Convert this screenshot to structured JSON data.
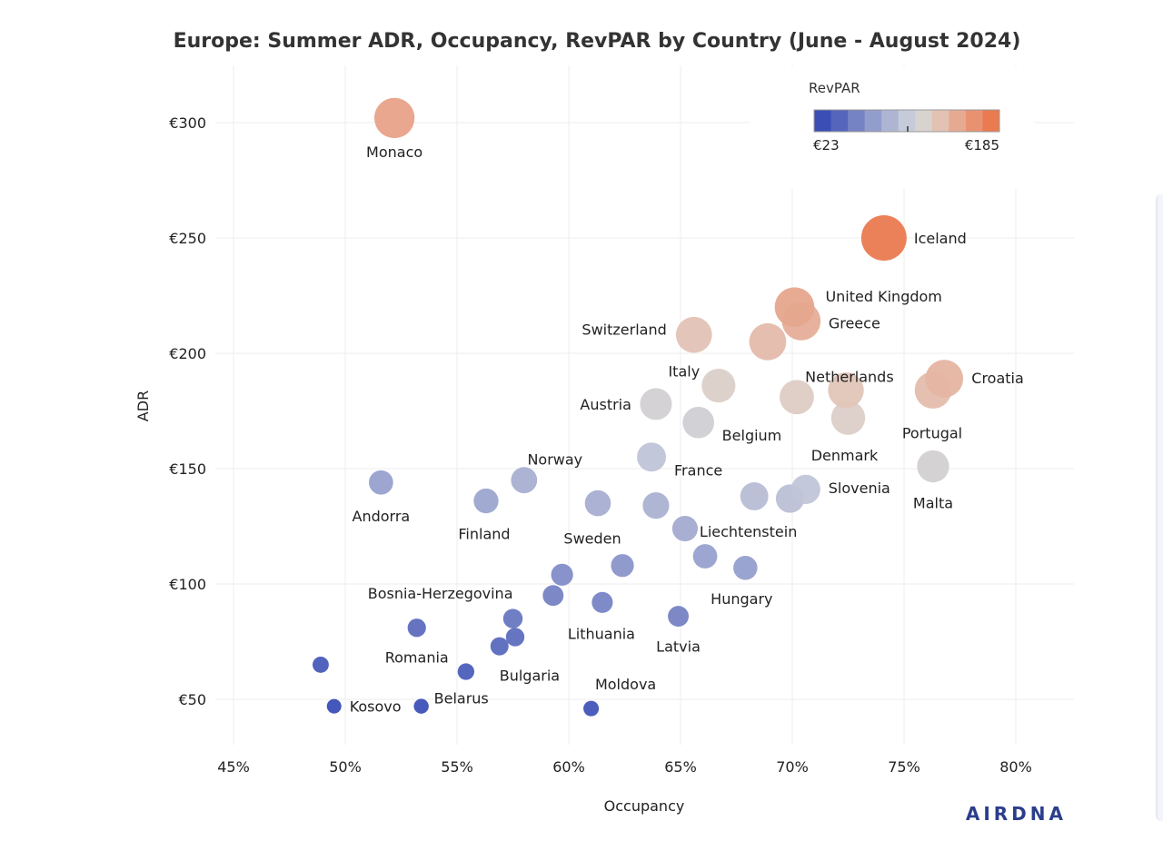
{
  "chart_data": {
    "type": "scatter",
    "title": "Europe: Summer ADR, Occupancy, RevPAR by Country (June - August 2024)",
    "xlabel": "Occupancy",
    "ylabel": "ADR",
    "xlim": [
      44.5,
      82.5
    ],
    "ylim": [
      27,
      327
    ],
    "x_ticks": [
      45,
      50,
      55,
      60,
      65,
      70,
      75,
      80
    ],
    "x_tick_labels": [
      "45%",
      "50%",
      "55%",
      "60%",
      "65%",
      "70%",
      "75%",
      "80%"
    ],
    "y_ticks": [
      50,
      100,
      150,
      200,
      250,
      300
    ],
    "y_tick_labels": [
      "€50",
      "€100",
      "€150",
      "€200",
      "€250",
      "€300"
    ],
    "grid": true,
    "size_encodes": "RevPAR",
    "color_encodes": "RevPAR",
    "colorscale": {
      "title": "RevPAR",
      "min": 23,
      "max": 185,
      "min_label": "€23",
      "max_label": "€185",
      "colors": [
        "#3a4eb6",
        "#5565bc",
        "#7582c4",
        "#939dcc",
        "#aeb5d3",
        "#c6cbd9",
        "#d9d3cf",
        "#e3c2b4",
        "#e6aa93",
        "#e99272",
        "#ea7a50"
      ],
      "placement": "top-right"
    },
    "points": [
      {
        "label": "Monaco",
        "x": 52.2,
        "y": 302,
        "revpar": 158
      },
      {
        "label": "Iceland",
        "x": 74.1,
        "y": 250,
        "revpar": 185
      },
      {
        "label": "United Kingdom",
        "x": 70.1,
        "y": 220,
        "revpar": 155
      },
      {
        "label": "Greece",
        "x": 70.4,
        "y": 214,
        "revpar": 150
      },
      {
        "label": "",
        "x": 68.9,
        "y": 205,
        "revpar": 141
      },
      {
        "label": "Switzerland",
        "x": 65.6,
        "y": 208,
        "revpar": 136
      },
      {
        "label": "Italy",
        "x": 66.7,
        "y": 186,
        "revpar": 124
      },
      {
        "label": "Netherlands",
        "x": 70.2,
        "y": 181,
        "revpar": 127
      },
      {
        "label": "",
        "x": 72.4,
        "y": 184,
        "revpar": 134
      },
      {
        "label": "Croatia",
        "x": 76.8,
        "y": 189,
        "revpar": 145
      },
      {
        "label": "Portugal",
        "x": 76.3,
        "y": 184,
        "revpar": 140
      },
      {
        "label": "Austria",
        "x": 63.9,
        "y": 178,
        "revpar": 114
      },
      {
        "label": "Belgium",
        "x": 65.8,
        "y": 170,
        "revpar": 112
      },
      {
        "label": "Denmark",
        "x": 72.5,
        "y": 172,
        "revpar": 125
      },
      {
        "label": "France",
        "x": 63.7,
        "y": 155,
        "revpar": 99
      },
      {
        "label": "Malta",
        "x": 76.3,
        "y": 151,
        "revpar": 115
      },
      {
        "label": "Norway",
        "x": 58.0,
        "y": 145,
        "revpar": 84
      },
      {
        "label": "Andorra",
        "x": 51.6,
        "y": 144,
        "revpar": 74
      },
      {
        "label": "Finland",
        "x": 56.3,
        "y": 136,
        "revpar": 77
      },
      {
        "label": "",
        "x": 61.3,
        "y": 135,
        "revpar": 83
      },
      {
        "label": "",
        "x": 63.9,
        "y": 134,
        "revpar": 86
      },
      {
        "label": "",
        "x": 68.3,
        "y": 138,
        "revpar": 94
      },
      {
        "label": "",
        "x": 69.9,
        "y": 137,
        "revpar": 96
      },
      {
        "label": "Slovenia",
        "x": 70.6,
        "y": 141,
        "revpar": 100
      },
      {
        "label": "Liechtenstein",
        "x": 65.2,
        "y": 124,
        "revpar": 81
      },
      {
        "label": "Sweden",
        "x": 62.4,
        "y": 108,
        "revpar": 67
      },
      {
        "label": "",
        "x": 66.1,
        "y": 112,
        "revpar": 74
      },
      {
        "label": "Hungary",
        "x": 67.9,
        "y": 107,
        "revpar": 73
      },
      {
        "label": "",
        "x": 59.7,
        "y": 104,
        "revpar": 62
      },
      {
        "label": "",
        "x": 59.3,
        "y": 95,
        "revpar": 56
      },
      {
        "label": "Lithuania",
        "x": 61.5,
        "y": 92,
        "revpar": 57
      },
      {
        "label": "Bosnia-Herzegovina",
        "x": 57.5,
        "y": 85,
        "revpar": 49
      },
      {
        "label": "Latvia",
        "x": 64.9,
        "y": 86,
        "revpar": 56
      },
      {
        "label": "Romania",
        "x": 53.2,
        "y": 81,
        "revpar": 43
      },
      {
        "label": "",
        "x": 57.6,
        "y": 77,
        "revpar": 44
      },
      {
        "label": "Bulgaria",
        "x": 56.9,
        "y": 73,
        "revpar": 42
      },
      {
        "label": "",
        "x": 48.9,
        "y": 65,
        "revpar": 32
      },
      {
        "label": "",
        "x": 55.4,
        "y": 62,
        "revpar": 34
      },
      {
        "label": "Kosovo",
        "x": 49.5,
        "y": 47,
        "revpar": 23
      },
      {
        "label": "Belarus",
        "x": 53.4,
        "y": 47,
        "revpar": 25
      },
      {
        "label": "Moldova",
        "x": 61.0,
        "y": 46,
        "revpar": 28
      }
    ]
  },
  "brand": {
    "text": "AIRDNA"
  }
}
